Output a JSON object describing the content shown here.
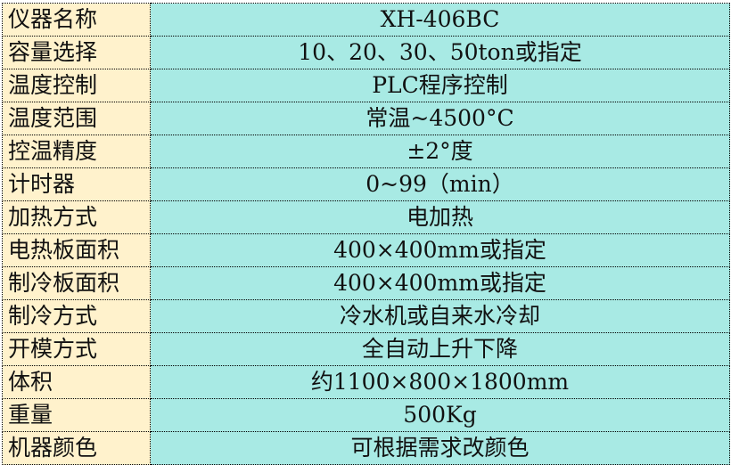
{
  "colors": {
    "label_bg": "#FFF2CC",
    "value_bg": "#A8EAE4"
  },
  "rows": [
    {
      "label": "仪器名称",
      "value": "XH-406BC"
    },
    {
      "label": "容量选择",
      "value": "10、20、30、50ton或指定"
    },
    {
      "label": "温度控制",
      "value": "PLC程序控制"
    },
    {
      "label": "温度范围",
      "value": "常温~4500°C"
    },
    {
      "label": "控温精度",
      "value": "±2°度"
    },
    {
      "label": "计时器",
      "value": "0~99（min）"
    },
    {
      "label": "加热方式",
      "value": "电加热"
    },
    {
      "label": "电热板面积",
      "value": "400×400mm或指定"
    },
    {
      "label": "制冷板面积",
      "value": "400×400mm或指定"
    },
    {
      "label": "制冷方式",
      "value": "冷水机或自来水冷却"
    },
    {
      "label": "开模方式",
      "value": "全自动上升下降"
    },
    {
      "label": "体积",
      "value": "约1100×800×1800mm"
    },
    {
      "label": "重量",
      "value": "500Kg"
    },
    {
      "label": "机器颜色",
      "value": "可根据需求改颜色"
    }
  ]
}
